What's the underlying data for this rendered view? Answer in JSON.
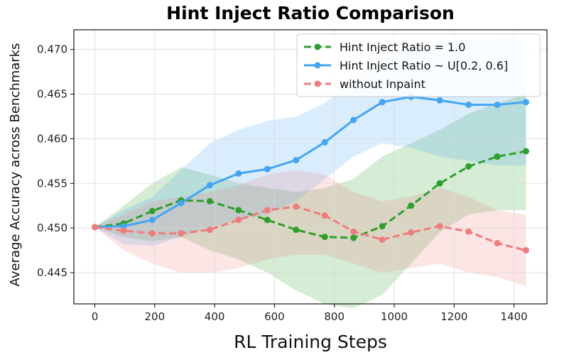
{
  "chart_data": {
    "type": "line",
    "title": "Hint Inject Ratio Comparison",
    "xlabel": "RL Training Steps",
    "ylabel": "Average Accuracy across Benchmarks",
    "xlim": [
      -70,
      1510
    ],
    "ylim": [
      0.4415,
      0.4722
    ],
    "xticks": [
      0,
      200,
      400,
      600,
      800,
      1000,
      1200,
      1400
    ],
    "yticks": [
      0.445,
      0.45,
      0.455,
      0.46,
      0.465,
      0.47
    ],
    "ytick_labels": [
      "0.445",
      "0.450",
      "0.455",
      "0.460",
      "0.465",
      "0.470"
    ],
    "grid": true,
    "legend_position": "top-right",
    "x": [
      0,
      96,
      192,
      288,
      384,
      480,
      576,
      672,
      768,
      864,
      960,
      1056,
      1152,
      1248,
      1344,
      1440
    ],
    "series": [
      {
        "name": "Hint Inject Ratio = 1.0",
        "color": "#2ca02c",
        "line_style": "dashed",
        "values": [
          0.4501,
          0.4505,
          0.4519,
          0.4531,
          0.453,
          0.452,
          0.4509,
          0.4498,
          0.449,
          0.4489,
          0.4502,
          0.4525,
          0.455,
          0.4569,
          0.458,
          0.4586
        ],
        "band_low": [
          0.4501,
          0.449,
          0.4485,
          0.449,
          0.4475,
          0.4465,
          0.445,
          0.443,
          0.4415,
          0.441,
          0.4425,
          0.446,
          0.4495,
          0.4515,
          0.452,
          0.452
        ],
        "band_high": [
          0.4501,
          0.4525,
          0.455,
          0.4568,
          0.456,
          0.455,
          0.4545,
          0.454,
          0.4545,
          0.4555,
          0.458,
          0.4595,
          0.461,
          0.4628,
          0.464,
          0.465
        ]
      },
      {
        "name": "Hint Inject Ratio ~ U[0.2, 0.6]",
        "color": "#42a5f5",
        "line_style": "solid",
        "values": [
          0.4501,
          0.4502,
          0.4509,
          0.4528,
          0.4548,
          0.4561,
          0.4566,
          0.4576,
          0.4596,
          0.4621,
          0.4641,
          0.4647,
          0.4643,
          0.4638,
          0.4638,
          0.4641
        ],
        "band_low": [
          0.4501,
          0.4482,
          0.448,
          0.449,
          0.45,
          0.451,
          0.4515,
          0.453,
          0.4555,
          0.458,
          0.4595,
          0.459,
          0.458,
          0.4575,
          0.457,
          0.457
        ],
        "band_high": [
          0.4501,
          0.452,
          0.4535,
          0.4565,
          0.4595,
          0.461,
          0.462,
          0.4625,
          0.464,
          0.4665,
          0.469,
          0.4702,
          0.4708,
          0.471,
          0.4712,
          0.4712
        ]
      },
      {
        "name": "without Inpaint",
        "color": "#f07c7c",
        "line_style": "dashed",
        "values": [
          0.4501,
          0.4497,
          0.4494,
          0.4494,
          0.4498,
          0.4509,
          0.452,
          0.4524,
          0.4514,
          0.4496,
          0.4487,
          0.4495,
          0.4502,
          0.4496,
          0.4483,
          0.4475
        ],
        "band_low": [
          0.4501,
          0.4475,
          0.446,
          0.445,
          0.445,
          0.4455,
          0.4465,
          0.447,
          0.447,
          0.446,
          0.445,
          0.4455,
          0.446,
          0.445,
          0.4445,
          0.4435
        ],
        "band_high": [
          0.4501,
          0.4515,
          0.453,
          0.4535,
          0.454,
          0.4548,
          0.456,
          0.4565,
          0.456,
          0.454,
          0.453,
          0.4535,
          0.4545,
          0.4535,
          0.452,
          0.4515
        ]
      }
    ]
  }
}
